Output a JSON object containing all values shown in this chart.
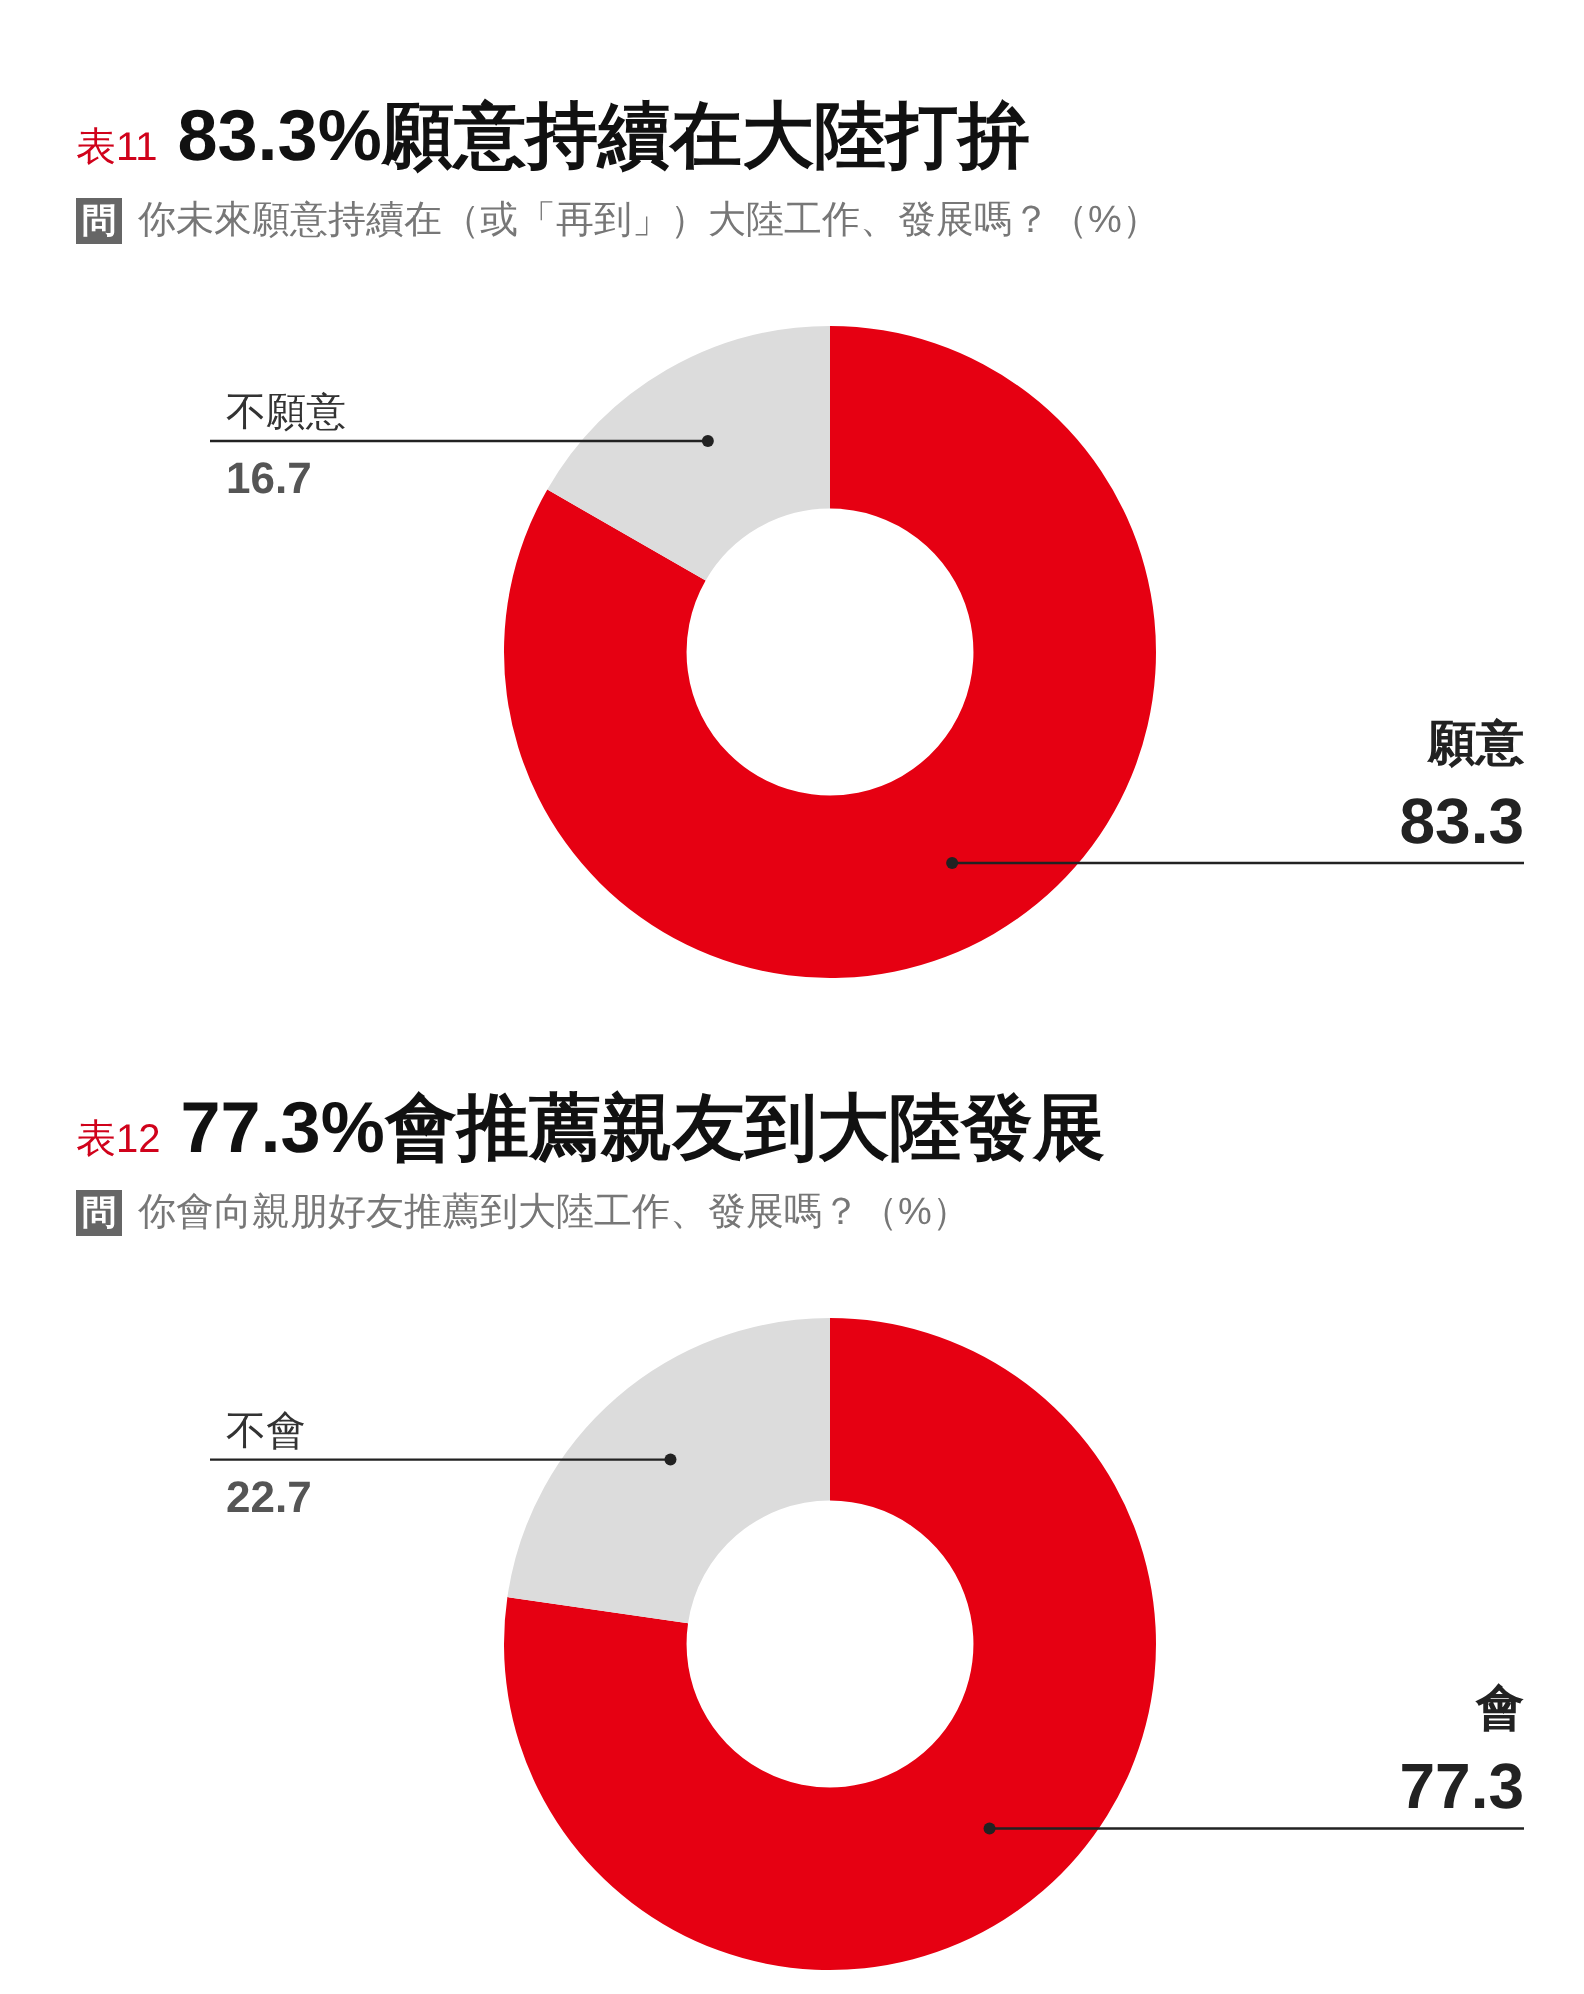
{
  "chart_data": [
    {
      "type": "donut",
      "title": "83.3%願意持續在大陸打拚",
      "subtitle": "你未來願意持續在（或「再到」）大陸工作、發展嗎？（%）",
      "annotations": [
        "表11",
        "問"
      ],
      "categories": [
        "願意",
        "不願意"
      ],
      "values": [
        83.3,
        16.7
      ],
      "colors": [
        "#e60012",
        "#dcdcdc"
      ],
      "data_labels": true,
      "legend": false
    },
    {
      "type": "donut",
      "title": "77.3%會推薦親友到大陸發展",
      "subtitle": "你會向親朋好友推薦到大陸工作、發展嗎？（%）",
      "annotations": [
        "表12",
        "問"
      ],
      "categories": [
        "會",
        "不會"
      ],
      "values": [
        77.3,
        22.7
      ],
      "colors": [
        "#e60012",
        "#dcdcdc"
      ],
      "data_labels": true,
      "legend": false
    }
  ]
}
